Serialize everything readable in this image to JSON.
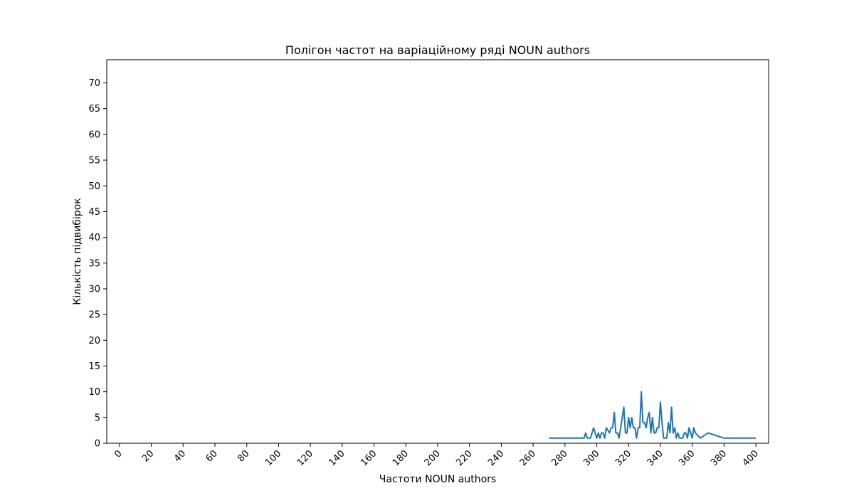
{
  "chart_data": {
    "type": "line",
    "title": "Полігон частот на варіаційному ряді NOUN authors",
    "xlabel": "Частоти NOUN authors",
    "ylabel": "Кількість підвибірок",
    "xlim": [
      -8,
      408
    ],
    "ylim": [
      0,
      74.5
    ],
    "xticks": [
      0,
      20,
      40,
      60,
      80,
      100,
      120,
      140,
      160,
      180,
      200,
      220,
      240,
      260,
      280,
      300,
      320,
      340,
      360,
      380,
      400
    ],
    "yticks": [
      0,
      5,
      10,
      15,
      20,
      25,
      30,
      35,
      40,
      45,
      50,
      55,
      60,
      65,
      70
    ],
    "grid": false,
    "line_color": "#1f77b4",
    "series": [
      {
        "x": [
          270,
          292,
          293,
          294,
          296,
          297,
          298,
          299,
          300,
          301,
          302,
          303,
          304,
          305,
          306,
          308,
          309,
          310,
          311,
          312,
          313,
          314,
          315,
          316,
          317,
          318,
          319,
          320,
          321,
          322,
          323,
          324,
          325,
          326,
          327,
          328,
          329,
          330,
          331,
          332,
          333,
          334,
          335,
          336,
          337,
          338,
          339,
          340,
          341,
          342,
          343,
          344,
          345,
          346,
          347,
          348,
          349,
          350,
          351,
          352,
          353,
          354,
          355,
          356,
          357,
          358,
          359,
          360,
          361,
          362,
          365,
          370,
          380,
          400
        ],
        "y": [
          1,
          1,
          2,
          1,
          1,
          2,
          3,
          2,
          1,
          2,
          1,
          2,
          2,
          1,
          3,
          2,
          3,
          3,
          6,
          2,
          2,
          1,
          3,
          5,
          7,
          2,
          2,
          5,
          3,
          5,
          3,
          3,
          1,
          3,
          3,
          10,
          4,
          4,
          3,
          5,
          6,
          2,
          5,
          2,
          2,
          3,
          3,
          8,
          4,
          1,
          1,
          1,
          4,
          2,
          7,
          2,
          3,
          1,
          2,
          1,
          1,
          1,
          2,
          2,
          1,
          3,
          2,
          1,
          3,
          2,
          1,
          2,
          1,
          1
        ]
      }
    ]
  }
}
